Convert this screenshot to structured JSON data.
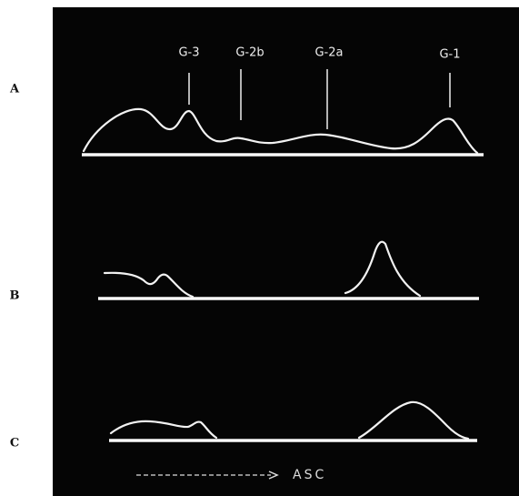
{
  "panels": [
    {
      "label": "A",
      "peaks": [
        "G-3",
        "G-2b",
        "G-2a",
        "G-1"
      ]
    },
    {
      "label": "B"
    },
    {
      "label": "C"
    }
  ],
  "arrow_label": "ASC"
}
